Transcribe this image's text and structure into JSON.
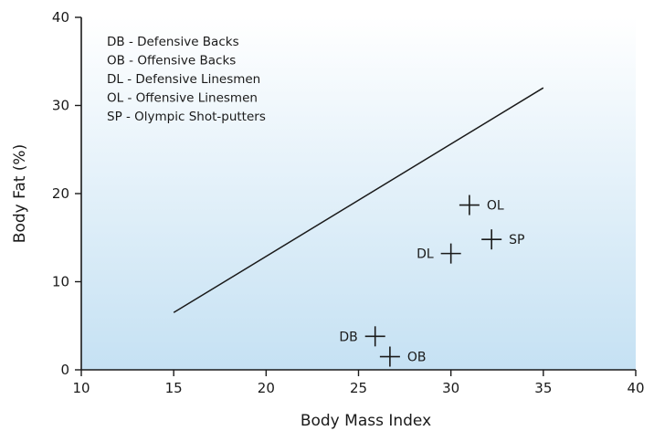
{
  "chart_data": {
    "type": "scatter",
    "title": "",
    "xlabel": "Body Mass Index",
    "ylabel": "Body Fat (%)",
    "xlim": [
      10,
      40
    ],
    "ylim": [
      0,
      40
    ],
    "xticks": [
      10,
      15,
      20,
      25,
      30,
      35,
      40
    ],
    "yticks": [
      0,
      10,
      20,
      30,
      40
    ],
    "grid": false,
    "background": "vertical gradient, white at top to light blue (#c5e1f3) at bottom",
    "legend": {
      "placement": "top-left",
      "entries": [
        "DB - Defensive Backs",
        "OB - Offensive Backs",
        "DL - Defensive Linesmen",
        "OL - Offensive Linesmen",
        "SP - Olympic Shot-putters"
      ]
    },
    "line": {
      "x": [
        15,
        35
      ],
      "y": [
        6.5,
        32
      ]
    },
    "points": [
      {
        "label": "OL",
        "x": 31,
        "y": 18.7,
        "label_side": "right"
      },
      {
        "label": "SP",
        "x": 32.2,
        "y": 14.8,
        "label_side": "right"
      },
      {
        "label": "DL",
        "x": 30,
        "y": 13.2,
        "label_side": "left"
      },
      {
        "label": "DB",
        "x": 25.9,
        "y": 3.8,
        "label_side": "left"
      },
      {
        "label": "OB",
        "x": 26.7,
        "y": 1.5,
        "label_side": "right"
      }
    ]
  },
  "colors": {
    "axis": "#1a1a1a",
    "marker": "#1a1a1a",
    "line": "#1a1a1a",
    "gradient_top": "#ffffff",
    "gradient_bottom": "#c5e1f3"
  }
}
